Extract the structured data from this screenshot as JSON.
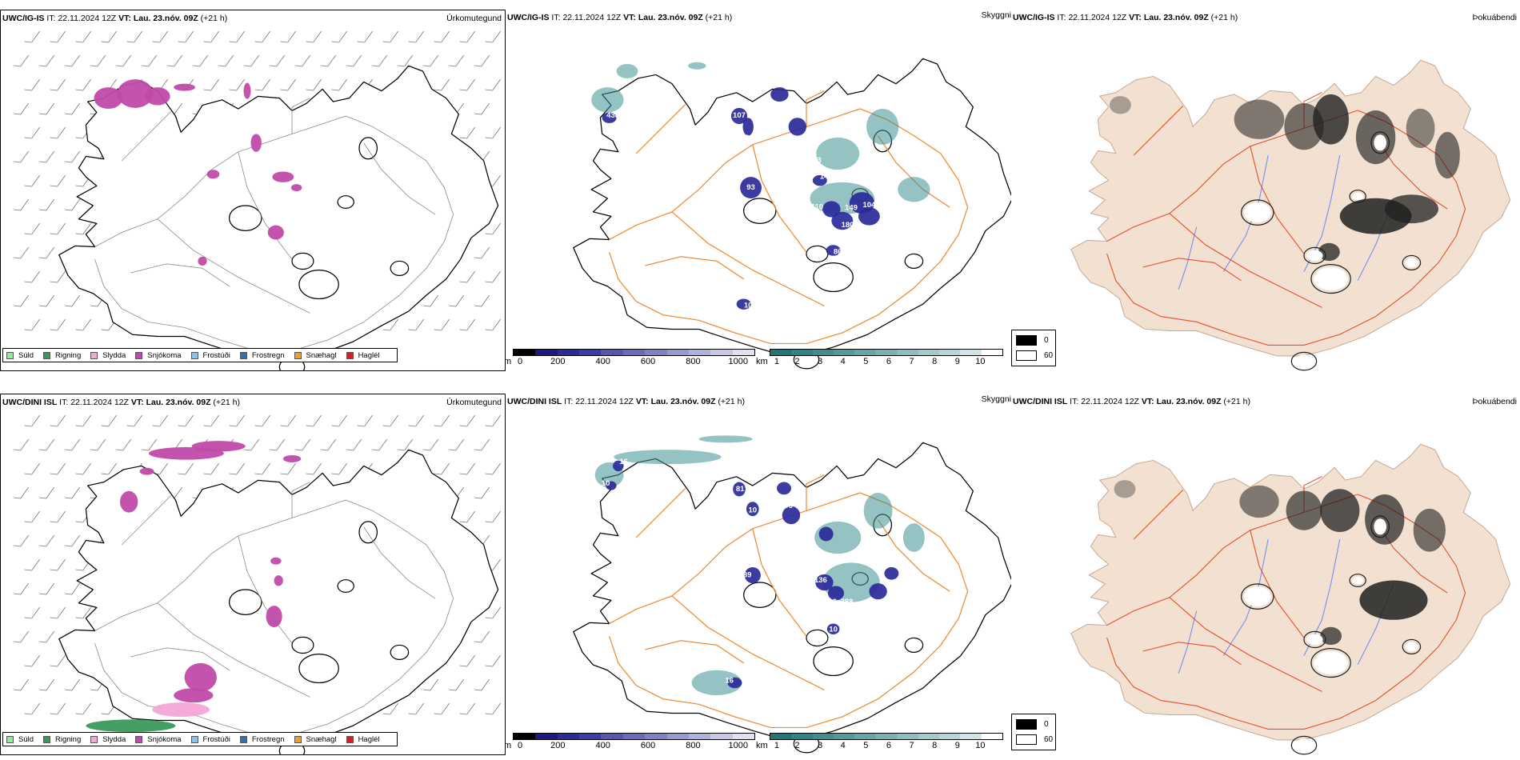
{
  "rows": [
    {
      "model": "UWC/IG-IS",
      "it_label": "IT:",
      "it_value": "22.11.2024 12Z",
      "vt_label": "VT:",
      "vt_value": "Lau. 23.nóv. 09Z",
      "lead": "(+21 h)"
    },
    {
      "model": "UWC/DINI ISL",
      "it_label": "IT:",
      "it_value": "22.11.2024 12Z",
      "vt_label": "VT:",
      "vt_value": "Lau. 23.nóv. 09Z",
      "lead": "(+21 h)"
    }
  ],
  "panel_titles": {
    "precip_type": "Úrkomutegund",
    "visibility": "Skyggni",
    "fog": "Þokuábendi"
  },
  "precip_legend": [
    {
      "label": "Súld",
      "color": "#90ee90"
    },
    {
      "label": "Rigning",
      "color": "#3a9a5a"
    },
    {
      "label": "Slydda",
      "color": "#f4a6d6"
    },
    {
      "label": "Snjókoma",
      "color": "#c04aa8"
    },
    {
      "label": "Frostúði",
      "color": "#8ec1ef"
    },
    {
      "label": "Frostregn",
      "color": "#2f6fc0"
    },
    {
      "label": "Snæhagl",
      "color": "#f5a020"
    },
    {
      "label": "Haglél",
      "color": "#e02020"
    }
  ],
  "ceiling_scale": {
    "unit": "m",
    "ticks": [
      "0",
      "200",
      "400",
      "600",
      "800",
      "1000"
    ],
    "colors": [
      "#000000",
      "#1a1a80",
      "#2a2a9a",
      "#3c3ca8",
      "#5454b4",
      "#6a6abe",
      "#8080c8",
      "#9898d2",
      "#b0b0dc",
      "#c8c8e6",
      "#e0e0f0"
    ]
  },
  "visibility_scale": {
    "unit": "km",
    "ticks": [
      "1",
      "2",
      "3",
      "4",
      "5",
      "6",
      "7",
      "8",
      "9",
      "10"
    ],
    "colors": [
      "#1e7878",
      "#2e8484",
      "#3e9090",
      "#509c9c",
      "#62a8a8",
      "#76b4b4",
      "#8cc0c0",
      "#a2cccc",
      "#b8d8d8",
      "#d0e6e6",
      "#ffffff"
    ]
  },
  "fog_legend": [
    {
      "value": "0",
      "color": "#000000"
    },
    {
      "value": "60",
      "color": "#ffffff"
    }
  ],
  "ceiling_labels_top": [
    "438",
    "107",
    "33",
    "27",
    "93",
    "145",
    "110",
    "184",
    "180",
    "149",
    "104",
    "83",
    "86",
    "10"
  ],
  "ceiling_labels_bottom": [
    "16",
    "10",
    "29",
    "81",
    "10",
    "96",
    "89",
    "75",
    "136",
    "210",
    "116",
    "288",
    "123",
    "178",
    "10",
    "16"
  ],
  "colors": {
    "coast": "#000000",
    "roads_orange": "#f08a30",
    "fog_land": "#f2e1d0",
    "fog_roads": "#e85030",
    "rivers": "#7890e8",
    "snow": "#c04aa8",
    "ceiling": "#2a2a9a",
    "visibility": "#3e9090"
  }
}
